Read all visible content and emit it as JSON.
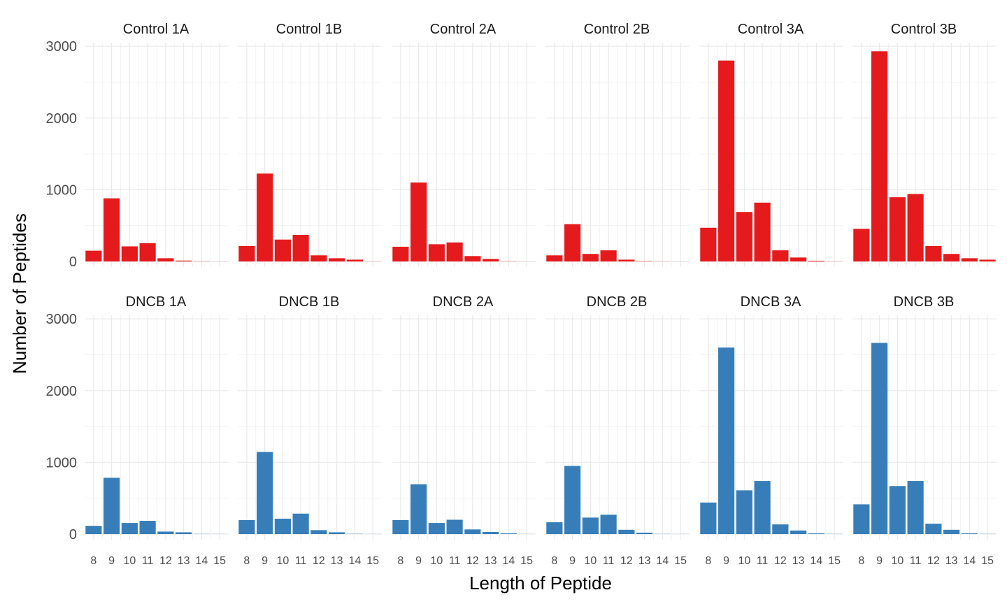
{
  "chart_data": {
    "type": "bar",
    "xlabel": "Length of Peptide",
    "ylabel": "Number of Peptides",
    "x": [
      8,
      9,
      10,
      11,
      12,
      13,
      14,
      15
    ],
    "x_tick_labels": [
      "8",
      "9",
      "10",
      "11",
      "12",
      "13",
      "14",
      "15"
    ],
    "y_ticks": [
      0,
      1000,
      2000,
      3000
    ],
    "y_tick_labels": [
      "0",
      "1000",
      "2000",
      "3000"
    ],
    "ylim": [
      0,
      3050
    ],
    "xlim": [
      7.5,
      15.5
    ],
    "grid": true,
    "legend": "none",
    "layout": "2 rows x 6 columns",
    "colors": {
      "Control": "#E41A1C",
      "DNCB": "#377EB8"
    },
    "panels": [
      {
        "name": "Control 1A",
        "group": "Control",
        "values": [
          150,
          880,
          210,
          255,
          45,
          12,
          3,
          1
        ]
      },
      {
        "name": "Control 1B",
        "group": "Control",
        "values": [
          215,
          1225,
          305,
          370,
          85,
          45,
          25,
          2
        ]
      },
      {
        "name": "Control 2A",
        "group": "Control",
        "values": [
          205,
          1100,
          240,
          265,
          75,
          35,
          3,
          1
        ]
      },
      {
        "name": "Control 2B",
        "group": "Control",
        "values": [
          85,
          520,
          105,
          155,
          25,
          5,
          2,
          1
        ]
      },
      {
        "name": "Control 3A",
        "group": "Control",
        "values": [
          470,
          2800,
          690,
          820,
          155,
          55,
          10,
          2
        ]
      },
      {
        "name": "Control 3B",
        "group": "Control",
        "values": [
          455,
          2930,
          895,
          940,
          215,
          105,
          45,
          25
        ]
      },
      {
        "name": "DNCB 1A",
        "group": "DNCB",
        "values": [
          115,
          785,
          155,
          185,
          35,
          25,
          2,
          1
        ]
      },
      {
        "name": "DNCB 1B",
        "group": "DNCB",
        "values": [
          195,
          1145,
          215,
          285,
          55,
          25,
          3,
          1
        ]
      },
      {
        "name": "DNCB 2A",
        "group": "DNCB",
        "values": [
          195,
          695,
          155,
          200,
          65,
          30,
          10,
          1
        ]
      },
      {
        "name": "DNCB 2B",
        "group": "DNCB",
        "values": [
          165,
          950,
          230,
          270,
          60,
          20,
          2,
          1
        ]
      },
      {
        "name": "DNCB 3A",
        "group": "DNCB",
        "values": [
          440,
          2600,
          610,
          740,
          135,
          50,
          10,
          2
        ]
      },
      {
        "name": "DNCB 3B",
        "group": "DNCB",
        "values": [
          415,
          2665,
          670,
          740,
          145,
          60,
          10,
          2
        ]
      }
    ]
  }
}
